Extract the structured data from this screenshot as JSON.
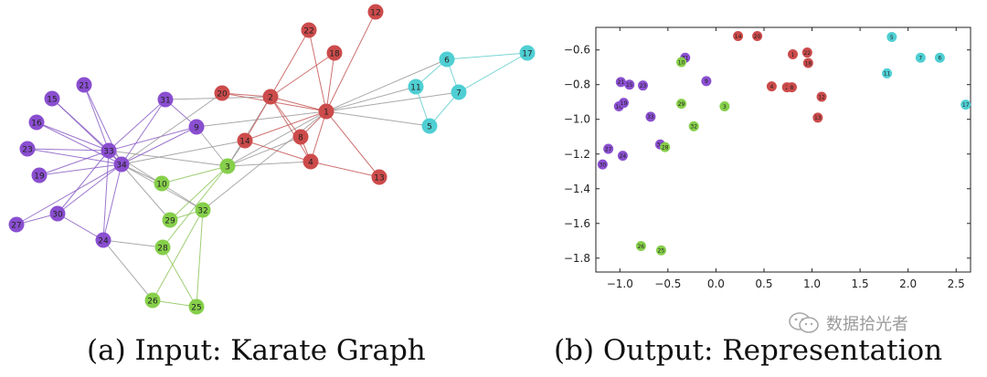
{
  "colors": {
    "purple": "#8a4fd0",
    "red": "#cc4b4b",
    "cyan": "#4fcfd3",
    "green": "#86cf4a",
    "edge": "#9a9a9a",
    "red_edge": "#c75757",
    "green_edge": "#8ec55c",
    "purple_edge": "#8b5fc6",
    "cyan_edge": "#61cccc"
  },
  "graph": {
    "nodes": [
      {
        "id": "1",
        "group": "red"
      },
      {
        "id": "2",
        "group": "red"
      },
      {
        "id": "3",
        "group": "green"
      },
      {
        "id": "4",
        "group": "red"
      },
      {
        "id": "5",
        "group": "cyan"
      },
      {
        "id": "6",
        "group": "cyan"
      },
      {
        "id": "7",
        "group": "cyan"
      },
      {
        "id": "8",
        "group": "red"
      },
      {
        "id": "9",
        "group": "purple"
      },
      {
        "id": "10",
        "group": "green"
      },
      {
        "id": "11",
        "group": "cyan"
      },
      {
        "id": "12",
        "group": "red"
      },
      {
        "id": "13",
        "group": "red"
      },
      {
        "id": "14",
        "group": "red"
      },
      {
        "id": "15",
        "group": "purple"
      },
      {
        "id": "16",
        "group": "purple"
      },
      {
        "id": "17",
        "group": "cyan"
      },
      {
        "id": "18",
        "group": "red"
      },
      {
        "id": "19",
        "group": "purple"
      },
      {
        "id": "20",
        "group": "red"
      },
      {
        "id": "21",
        "group": "purple"
      },
      {
        "id": "22",
        "group": "red"
      },
      {
        "id": "23",
        "group": "purple"
      },
      {
        "id": "24",
        "group": "purple"
      },
      {
        "id": "25",
        "group": "green"
      },
      {
        "id": "26",
        "group": "green"
      },
      {
        "id": "27",
        "group": "purple"
      },
      {
        "id": "28",
        "group": "green"
      },
      {
        "id": "29",
        "group": "green"
      },
      {
        "id": "30",
        "group": "purple"
      },
      {
        "id": "31",
        "group": "purple"
      },
      {
        "id": "32",
        "group": "green"
      },
      {
        "id": "33",
        "group": "purple"
      },
      {
        "id": "34",
        "group": "purple"
      }
    ],
    "edges": [
      [
        "1",
        "2"
      ],
      [
        "1",
        "3"
      ],
      [
        "1",
        "4"
      ],
      [
        "1",
        "5"
      ],
      [
        "1",
        "6"
      ],
      [
        "1",
        "7"
      ],
      [
        "1",
        "8"
      ],
      [
        "1",
        "9"
      ],
      [
        "1",
        "11"
      ],
      [
        "1",
        "12"
      ],
      [
        "1",
        "13"
      ],
      [
        "1",
        "14"
      ],
      [
        "1",
        "18"
      ],
      [
        "1",
        "20"
      ],
      [
        "1",
        "22"
      ],
      [
        "1",
        "32"
      ],
      [
        "2",
        "3"
      ],
      [
        "2",
        "4"
      ],
      [
        "2",
        "8"
      ],
      [
        "2",
        "14"
      ],
      [
        "2",
        "18"
      ],
      [
        "2",
        "20"
      ],
      [
        "2",
        "22"
      ],
      [
        "2",
        "31"
      ],
      [
        "3",
        "4"
      ],
      [
        "3",
        "8"
      ],
      [
        "3",
        "9"
      ],
      [
        "3",
        "10"
      ],
      [
        "3",
        "14"
      ],
      [
        "3",
        "28"
      ],
      [
        "3",
        "29"
      ],
      [
        "3",
        "33"
      ],
      [
        "4",
        "8"
      ],
      [
        "4",
        "13"
      ],
      [
        "4",
        "14"
      ],
      [
        "5",
        "7"
      ],
      [
        "5",
        "11"
      ],
      [
        "6",
        "7"
      ],
      [
        "6",
        "11"
      ],
      [
        "6",
        "17"
      ],
      [
        "7",
        "17"
      ],
      [
        "9",
        "31"
      ],
      [
        "9",
        "33"
      ],
      [
        "9",
        "34"
      ],
      [
        "10",
        "34"
      ],
      [
        "14",
        "34"
      ],
      [
        "15",
        "33"
      ],
      [
        "15",
        "34"
      ],
      [
        "16",
        "33"
      ],
      [
        "16",
        "34"
      ],
      [
        "19",
        "33"
      ],
      [
        "19",
        "34"
      ],
      [
        "20",
        "34"
      ],
      [
        "21",
        "33"
      ],
      [
        "21",
        "34"
      ],
      [
        "23",
        "33"
      ],
      [
        "23",
        "34"
      ],
      [
        "24",
        "26"
      ],
      [
        "24",
        "28"
      ],
      [
        "24",
        "30"
      ],
      [
        "24",
        "33"
      ],
      [
        "24",
        "34"
      ],
      [
        "25",
        "26"
      ],
      [
        "25",
        "28"
      ],
      [
        "25",
        "32"
      ],
      [
        "26",
        "32"
      ],
      [
        "27",
        "30"
      ],
      [
        "27",
        "34"
      ],
      [
        "29",
        "32"
      ],
      [
        "29",
        "34"
      ],
      [
        "30",
        "33"
      ],
      [
        "30",
        "34"
      ],
      [
        "31",
        "33"
      ],
      [
        "31",
        "34"
      ],
      [
        "32",
        "33"
      ],
      [
        "32",
        "34"
      ],
      [
        "33",
        "34"
      ]
    ]
  },
  "scatter": {
    "xticks": [
      "−1.0",
      "−0.5",
      "0.0",
      "0.5",
      "1.0",
      "1.5",
      "2.0",
      "2.5"
    ],
    "yticks": [
      "−0.6",
      "−0.8",
      "−1.0",
      "−1.2",
      "−1.4",
      "−1.6",
      "−1.8"
    ],
    "xlim": [
      -1.25,
      2.65
    ],
    "ylim": [
      -1.88,
      -0.47
    ],
    "points": [
      {
        "id": "6",
        "x": 2.33,
        "y": -0.645,
        "group": "cyan"
      },
      {
        "id": "7",
        "x": 2.13,
        "y": -0.645,
        "group": "cyan"
      },
      {
        "id": "5",
        "x": 1.83,
        "y": -0.525,
        "group": "cyan"
      },
      {
        "id": "11",
        "x": 1.78,
        "y": -0.735,
        "group": "cyan"
      },
      {
        "id": "17",
        "x": 2.6,
        "y": -0.915,
        "group": "cyan"
      },
      {
        "id": "14",
        "x": 0.23,
        "y": -0.52,
        "group": "red"
      },
      {
        "id": "20",
        "x": 0.43,
        "y": -0.52,
        "group": "red"
      },
      {
        "id": "1",
        "x": 0.8,
        "y": -0.625,
        "group": "red"
      },
      {
        "id": "22",
        "x": 0.95,
        "y": -0.615,
        "group": "red"
      },
      {
        "id": "18",
        "x": 0.96,
        "y": -0.675,
        "group": "red"
      },
      {
        "id": "4",
        "x": 0.58,
        "y": -0.81,
        "group": "red"
      },
      {
        "id": "2",
        "x": 0.74,
        "y": -0.815,
        "group": "red"
      },
      {
        "id": "8",
        "x": 0.79,
        "y": -0.815,
        "group": "red"
      },
      {
        "id": "12",
        "x": 1.1,
        "y": -0.87,
        "group": "red"
      },
      {
        "id": "13",
        "x": 1.06,
        "y": -0.99,
        "group": "red"
      },
      {
        "id": "31",
        "x": -0.32,
        "y": -0.645,
        "group": "purple"
      },
      {
        "id": "9",
        "x": -0.1,
        "y": -0.78,
        "group": "purple"
      },
      {
        "id": "21",
        "x": -0.99,
        "y": -0.785,
        "group": "purple"
      },
      {
        "id": "15",
        "x": -0.9,
        "y": -0.8,
        "group": "purple"
      },
      {
        "id": "23",
        "x": -0.76,
        "y": -0.805,
        "group": "purple"
      },
      {
        "id": "16",
        "x": -1.01,
        "y": -0.925,
        "group": "purple"
      },
      {
        "id": "19",
        "x": -0.96,
        "y": -0.905,
        "group": "purple"
      },
      {
        "id": "33",
        "x": -0.68,
        "y": -0.985,
        "group": "purple"
      },
      {
        "id": "34",
        "x": -0.58,
        "y": -1.145,
        "group": "purple"
      },
      {
        "id": "27",
        "x": -1.12,
        "y": -1.17,
        "group": "purple"
      },
      {
        "id": "24",
        "x": -0.97,
        "y": -1.21,
        "group": "purple"
      },
      {
        "id": "30",
        "x": -1.18,
        "y": -1.26,
        "group": "purple"
      },
      {
        "id": "10",
        "x": -0.36,
        "y": -0.67,
        "group": "green"
      },
      {
        "id": "29",
        "x": -0.36,
        "y": -0.91,
        "group": "green"
      },
      {
        "id": "3",
        "x": 0.09,
        "y": -0.925,
        "group": "green"
      },
      {
        "id": "32",
        "x": -0.23,
        "y": -1.04,
        "group": "green"
      },
      {
        "id": "28",
        "x": -0.53,
        "y": -1.16,
        "group": "green"
      },
      {
        "id": "26",
        "x": -0.78,
        "y": -1.73,
        "group": "green"
      },
      {
        "id": "25",
        "x": -0.57,
        "y": -1.755,
        "group": "green"
      }
    ]
  },
  "captions": {
    "a": "(a) Input: Karate Graph",
    "b": "(b) Output: Representation"
  },
  "watermark": "数据拾光者"
}
